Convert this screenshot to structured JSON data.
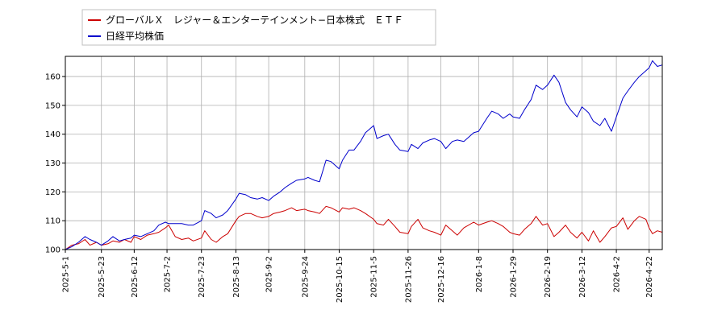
{
  "chart_data": {
    "type": "line",
    "title": "",
    "xlabel": "",
    "ylabel": "",
    "x_range": [
      "2025-05-01",
      "2026-04-30"
    ],
    "ylim": [
      100,
      167
    ],
    "yticks": [
      100,
      110,
      120,
      130,
      140,
      150,
      160
    ],
    "xticks": [
      "2025-5-1",
      "2025-5-23",
      "2025-6-12",
      "2025-7-2",
      "2025-7-23",
      "2025-8-13",
      "2025-9-2",
      "2025-9-24",
      "2025-10-15",
      "2025-11-5",
      "2025-11-26",
      "2025-12-16",
      "2026-1-8",
      "2026-1-29",
      "2026-2-19",
      "2026-3-12",
      "2026-4-2",
      "2026-4-22"
    ],
    "grid": true,
    "legend_position": "top-left",
    "series": [
      {
        "name": "グローバルＸ　レジャー＆エンターテインメント−日本株式　ＥＴＦ",
        "color": "#cc0000",
        "points": [
          [
            "2025-05-01",
            100.0
          ],
          [
            "2025-05-05",
            101.5
          ],
          [
            "2025-05-09",
            102.0
          ],
          [
            "2025-05-13",
            103.5
          ],
          [
            "2025-05-16",
            101.5
          ],
          [
            "2025-05-20",
            102.5
          ],
          [
            "2025-05-23",
            101.5
          ],
          [
            "2025-05-27",
            102.0
          ],
          [
            "2025-05-30",
            103.0
          ],
          [
            "2025-06-03",
            102.5
          ],
          [
            "2025-06-06",
            103.5
          ],
          [
            "2025-06-10",
            102.5
          ],
          [
            "2025-06-12",
            104.5
          ],
          [
            "2025-06-16",
            103.5
          ],
          [
            "2025-06-20",
            105.0
          ],
          [
            "2025-06-24",
            105.5
          ],
          [
            "2025-06-27",
            106.0
          ],
          [
            "2025-07-01",
            107.5
          ],
          [
            "2025-07-03",
            108.5
          ],
          [
            "2025-07-07",
            104.5
          ],
          [
            "2025-07-11",
            103.5
          ],
          [
            "2025-07-15",
            104.0
          ],
          [
            "2025-07-18",
            103.0
          ],
          [
            "2025-07-23",
            104.0
          ],
          [
            "2025-07-25",
            106.5
          ],
          [
            "2025-07-29",
            103.5
          ],
          [
            "2025-08-01",
            102.5
          ],
          [
            "2025-08-05",
            104.5
          ],
          [
            "2025-08-08",
            105.5
          ],
          [
            "2025-08-13",
            110.0
          ],
          [
            "2025-08-15",
            111.5
          ],
          [
            "2025-08-19",
            112.5
          ],
          [
            "2025-08-22",
            112.5
          ],
          [
            "2025-08-26",
            111.5
          ],
          [
            "2025-08-29",
            111.0
          ],
          [
            "2025-09-02",
            111.5
          ],
          [
            "2025-09-05",
            112.5
          ],
          [
            "2025-09-09",
            113.0
          ],
          [
            "2025-09-12",
            113.5
          ],
          [
            "2025-09-16",
            114.5
          ],
          [
            "2025-09-19",
            113.5
          ],
          [
            "2025-09-24",
            114.0
          ],
          [
            "2025-09-26",
            113.5
          ],
          [
            "2025-09-30",
            113.0
          ],
          [
            "2025-10-03",
            112.5
          ],
          [
            "2025-10-07",
            115.0
          ],
          [
            "2025-10-10",
            114.5
          ],
          [
            "2025-10-15",
            113.0
          ],
          [
            "2025-10-17",
            114.5
          ],
          [
            "2025-10-21",
            114.0
          ],
          [
            "2025-10-24",
            114.5
          ],
          [
            "2025-10-28",
            113.5
          ],
          [
            "2025-10-31",
            112.5
          ],
          [
            "2025-11-05",
            110.5
          ],
          [
            "2025-11-07",
            109.0
          ],
          [
            "2025-11-11",
            108.5
          ],
          [
            "2025-11-14",
            110.5
          ],
          [
            "2025-11-18",
            108.0
          ],
          [
            "2025-11-21",
            106.0
          ],
          [
            "2025-11-26",
            105.5
          ],
          [
            "2025-11-28",
            108.0
          ],
          [
            "2025-12-02",
            110.5
          ],
          [
            "2025-12-05",
            107.5
          ],
          [
            "2025-12-09",
            106.5
          ],
          [
            "2025-12-12",
            106.0
          ],
          [
            "2025-12-16",
            105.0
          ],
          [
            "2025-12-19",
            108.5
          ],
          [
            "2025-12-23",
            106.5
          ],
          [
            "2025-12-26",
            105.0
          ],
          [
            "2025-12-30",
            107.5
          ],
          [
            "2026-01-05",
            109.5
          ],
          [
            "2026-01-08",
            108.5
          ],
          [
            "2026-01-13",
            109.5
          ],
          [
            "2026-01-16",
            110.0
          ],
          [
            "2026-01-20",
            109.0
          ],
          [
            "2026-01-23",
            108.0
          ],
          [
            "2026-01-27",
            106.0
          ],
          [
            "2026-01-29",
            105.5
          ],
          [
            "2026-02-02",
            105.0
          ],
          [
            "2026-02-05",
            107.0
          ],
          [
            "2026-02-09",
            109.0
          ],
          [
            "2026-02-12",
            111.5
          ],
          [
            "2026-02-16",
            108.5
          ],
          [
            "2026-02-19",
            109.0
          ],
          [
            "2026-02-23",
            104.5
          ],
          [
            "2026-02-26",
            106.0
          ],
          [
            "2026-03-02",
            108.5
          ],
          [
            "2026-03-05",
            106.0
          ],
          [
            "2026-03-09",
            104.0
          ],
          [
            "2026-03-12",
            106.0
          ],
          [
            "2026-03-16",
            103.0
          ],
          [
            "2026-03-19",
            106.5
          ],
          [
            "2026-03-23",
            102.5
          ],
          [
            "2026-03-26",
            104.5
          ],
          [
            "2026-03-30",
            107.5
          ],
          [
            "2026-04-02",
            108.0
          ],
          [
            "2026-04-06",
            111.0
          ],
          [
            "2026-04-09",
            107.0
          ],
          [
            "2026-04-13",
            110.0
          ],
          [
            "2026-04-16",
            111.5
          ],
          [
            "2026-04-20",
            110.5
          ],
          [
            "2026-04-22",
            107.5
          ],
          [
            "2026-04-24",
            105.5
          ],
          [
            "2026-04-27",
            106.5
          ],
          [
            "2026-04-30",
            106.0
          ]
        ]
      },
      {
        "name": "日経平均株価",
        "color": "#0000cc",
        "points": [
          [
            "2025-05-01",
            100.0
          ],
          [
            "2025-05-05",
            101.0
          ],
          [
            "2025-05-09",
            102.5
          ],
          [
            "2025-05-13",
            104.5
          ],
          [
            "2025-05-16",
            103.5
          ],
          [
            "2025-05-20",
            102.5
          ],
          [
            "2025-05-23",
            101.5
          ],
          [
            "2025-05-27",
            103.0
          ],
          [
            "2025-05-30",
            104.5
          ],
          [
            "2025-06-03",
            103.0
          ],
          [
            "2025-06-06",
            103.5
          ],
          [
            "2025-06-10",
            104.0
          ],
          [
            "2025-06-12",
            105.0
          ],
          [
            "2025-06-16",
            104.5
          ],
          [
            "2025-06-20",
            105.5
          ],
          [
            "2025-06-24",
            106.5
          ],
          [
            "2025-06-27",
            108.5
          ],
          [
            "2025-07-01",
            109.5
          ],
          [
            "2025-07-03",
            109.0
          ],
          [
            "2025-07-07",
            109.0
          ],
          [
            "2025-07-11",
            109.0
          ],
          [
            "2025-07-15",
            108.5
          ],
          [
            "2025-07-18",
            108.5
          ],
          [
            "2025-07-23",
            110.0
          ],
          [
            "2025-07-25",
            113.5
          ],
          [
            "2025-07-29",
            112.5
          ],
          [
            "2025-08-01",
            111.0
          ],
          [
            "2025-08-05",
            112.0
          ],
          [
            "2025-08-08",
            113.5
          ],
          [
            "2025-08-13",
            117.5
          ],
          [
            "2025-08-15",
            119.5
          ],
          [
            "2025-08-19",
            119.0
          ],
          [
            "2025-08-22",
            118.0
          ],
          [
            "2025-08-26",
            117.5
          ],
          [
            "2025-08-29",
            118.0
          ],
          [
            "2025-09-02",
            117.0
          ],
          [
            "2025-09-05",
            118.5
          ],
          [
            "2025-09-09",
            120.0
          ],
          [
            "2025-09-12",
            121.5
          ],
          [
            "2025-09-16",
            123.0
          ],
          [
            "2025-09-19",
            124.0
          ],
          [
            "2025-09-24",
            124.5
          ],
          [
            "2025-09-26",
            125.0
          ],
          [
            "2025-09-30",
            124.0
          ],
          [
            "2025-10-03",
            123.5
          ],
          [
            "2025-10-07",
            131.0
          ],
          [
            "2025-10-10",
            130.5
          ],
          [
            "2025-10-15",
            128.0
          ],
          [
            "2025-10-17",
            131.0
          ],
          [
            "2025-10-21",
            134.5
          ],
          [
            "2025-10-24",
            134.5
          ],
          [
            "2025-10-28",
            137.5
          ],
          [
            "2025-10-31",
            140.5
          ],
          [
            "2025-11-05",
            143.0
          ],
          [
            "2025-11-07",
            138.5
          ],
          [
            "2025-11-11",
            139.5
          ],
          [
            "2025-11-14",
            140.0
          ],
          [
            "2025-11-18",
            136.5
          ],
          [
            "2025-11-21",
            134.5
          ],
          [
            "2025-11-26",
            134.0
          ],
          [
            "2025-11-28",
            136.5
          ],
          [
            "2025-12-02",
            135.0
          ],
          [
            "2025-12-05",
            137.0
          ],
          [
            "2025-12-09",
            138.0
          ],
          [
            "2025-12-12",
            138.5
          ],
          [
            "2025-12-16",
            137.5
          ],
          [
            "2025-12-19",
            135.0
          ],
          [
            "2025-12-23",
            137.5
          ],
          [
            "2025-12-26",
            138.0
          ],
          [
            "2025-12-30",
            137.5
          ],
          [
            "2026-01-05",
            140.5
          ],
          [
            "2026-01-08",
            141.0
          ],
          [
            "2026-01-13",
            145.5
          ],
          [
            "2026-01-16",
            148.0
          ],
          [
            "2026-01-20",
            147.0
          ],
          [
            "2026-01-23",
            145.5
          ],
          [
            "2026-01-27",
            147.0
          ],
          [
            "2026-01-29",
            146.0
          ],
          [
            "2026-02-02",
            145.5
          ],
          [
            "2026-02-05",
            148.5
          ],
          [
            "2026-02-09",
            152.0
          ],
          [
            "2026-02-12",
            157.0
          ],
          [
            "2026-02-16",
            155.5
          ],
          [
            "2026-02-19",
            157.0
          ],
          [
            "2026-02-23",
            160.5
          ],
          [
            "2026-02-26",
            158.0
          ],
          [
            "2026-03-02",
            151.0
          ],
          [
            "2026-03-05",
            148.5
          ],
          [
            "2026-03-09",
            146.0
          ],
          [
            "2026-03-12",
            149.5
          ],
          [
            "2026-03-16",
            147.5
          ],
          [
            "2026-03-19",
            144.5
          ],
          [
            "2026-03-23",
            143.0
          ],
          [
            "2026-03-26",
            145.5
          ],
          [
            "2026-03-30",
            141.0
          ],
          [
            "2026-04-02",
            146.0
          ],
          [
            "2026-04-06",
            152.5
          ],
          [
            "2026-04-09",
            155.0
          ],
          [
            "2026-04-13",
            158.0
          ],
          [
            "2026-04-16",
            160.0
          ],
          [
            "2026-04-20",
            162.0
          ],
          [
            "2026-04-22",
            163.0
          ],
          [
            "2026-04-24",
            165.5
          ],
          [
            "2026-04-27",
            163.5
          ],
          [
            "2026-04-30",
            164.0
          ]
        ]
      }
    ]
  }
}
